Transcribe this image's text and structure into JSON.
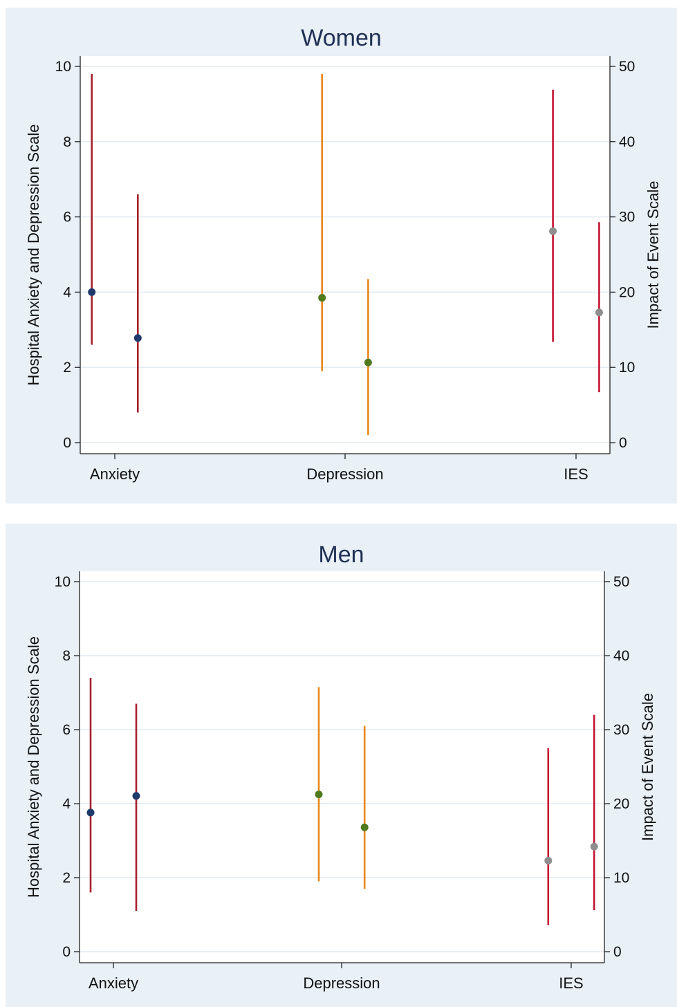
{
  "colors": {
    "panel_bg": "#e9f0f6",
    "plot_bg": "#ffffff",
    "grid": "#e3eaf0",
    "title": "#1f2f55",
    "anxiety_marker": "#1f3a6b",
    "depression_marker": "#4f7a1e",
    "ies_marker": "#8e8e8e",
    "anxiety_bar": "#a5212e",
    "depression_bar": "#e8871a",
    "ies_bar": "#c41432"
  },
  "chart_data": [
    {
      "type": "scatter",
      "title": "Women",
      "ylabel_left": "Hospital Anxiety and Depression Scale",
      "ylabel_right": "Impact of Event Scale",
      "ylim_left": [
        0,
        10
      ],
      "ylim_right": [
        0,
        50
      ],
      "yticks_left": [
        "0",
        "2",
        "4",
        "6",
        "8",
        "10"
      ],
      "yticks_right": [
        "0",
        "10",
        "20",
        "30",
        "40",
        "50"
      ],
      "categories": [
        "Anxiety",
        "Depression",
        "IES"
      ],
      "grid": true,
      "series": [
        {
          "category": "Anxiety",
          "axis": "left",
          "kind": "anxiety",
          "x": -0.1,
          "value": 4.0,
          "ci": [
            2.6,
            9.8
          ]
        },
        {
          "category": "Anxiety",
          "axis": "left",
          "kind": "anxiety",
          "x": 0.1,
          "value": 2.78,
          "ci": [
            0.8,
            6.6
          ]
        },
        {
          "category": "Depression",
          "axis": "left",
          "kind": "depression",
          "x": 0.9,
          "value": 3.85,
          "ci": [
            1.9,
            9.8
          ]
        },
        {
          "category": "Depression",
          "axis": "left",
          "kind": "depression",
          "x": 1.1,
          "value": 2.13,
          "ci": [
            0.2,
            4.35
          ]
        },
        {
          "category": "IES",
          "axis": "right",
          "kind": "ies",
          "x": 1.9,
          "value": 28.1,
          "ci": [
            13.4,
            46.9
          ]
        },
        {
          "category": "IES",
          "axis": "right",
          "kind": "ies",
          "x": 2.1,
          "value": 17.3,
          "ci": [
            6.7,
            29.3
          ]
        }
      ]
    },
    {
      "type": "scatter",
      "title": "Men",
      "ylabel_left": "Hospital Anxiety and Depression Scale",
      "ylabel_right": "Impact of Event Scale",
      "ylim_left": [
        0,
        10
      ],
      "ylim_right": [
        0,
        50
      ],
      "yticks_left": [
        "0",
        "2",
        "4",
        "6",
        "8",
        "10"
      ],
      "yticks_right": [
        "0",
        "10",
        "20",
        "30",
        "40",
        "50"
      ],
      "categories": [
        "Anxiety",
        "Depression",
        "IES"
      ],
      "grid": true,
      "series": [
        {
          "category": "Anxiety",
          "axis": "left",
          "kind": "anxiety",
          "x": -0.1,
          "value": 3.76,
          "ci": [
            1.6,
            7.4
          ]
        },
        {
          "category": "Anxiety",
          "axis": "left",
          "kind": "anxiety",
          "x": 0.1,
          "value": 4.21,
          "ci": [
            1.1,
            6.7
          ]
        },
        {
          "category": "Depression",
          "axis": "left",
          "kind": "depression",
          "x": 0.9,
          "value": 4.25,
          "ci": [
            1.9,
            7.15
          ]
        },
        {
          "category": "Depression",
          "axis": "left",
          "kind": "depression",
          "x": 1.1,
          "value": 3.36,
          "ci": [
            1.7,
            6.1
          ]
        },
        {
          "category": "IES",
          "axis": "right",
          "kind": "ies",
          "x": 1.9,
          "value": 12.3,
          "ci": [
            3.6,
            27.5
          ]
        },
        {
          "category": "IES",
          "axis": "right",
          "kind": "ies",
          "x": 2.1,
          "value": 14.2,
          "ci": [
            5.6,
            32.0
          ]
        }
      ]
    }
  ]
}
